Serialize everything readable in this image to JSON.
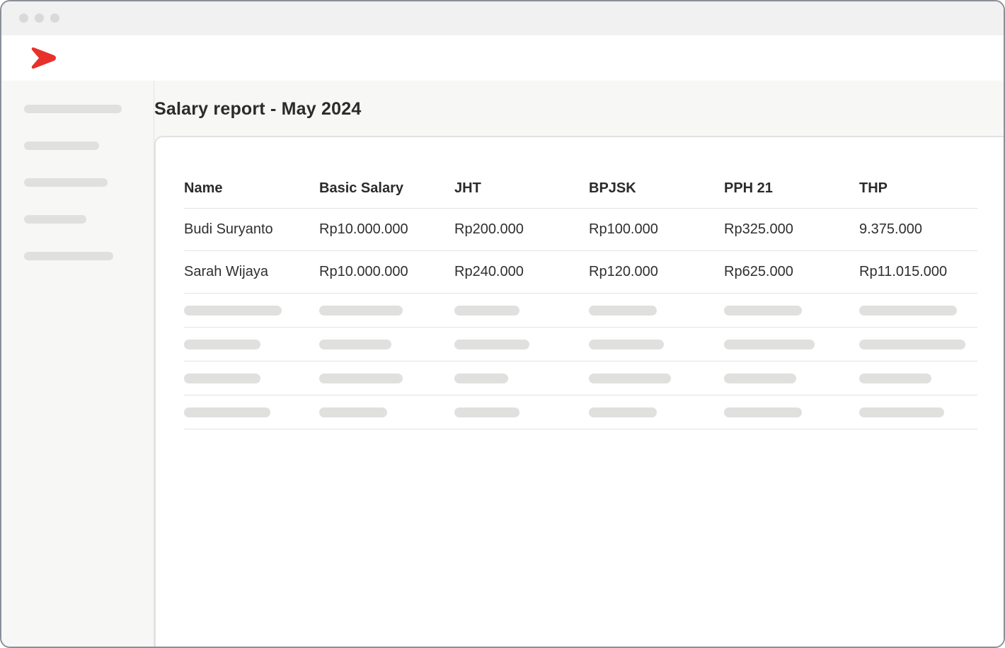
{
  "window": {
    "colors": {
      "traffic_light": "#d9d9d9",
      "border": "#8b8f9a",
      "brand": "#e8312b"
    }
  },
  "app": {
    "logo_icon": "chevron-arrow-logo"
  },
  "page": {
    "title": "Salary report - May 2024"
  },
  "table": {
    "columns": [
      "Name",
      "Basic Salary",
      "JHT",
      "BPJSK",
      "PPH 21",
      "THP"
    ],
    "rows": [
      [
        "Budi Suryanto",
        "Rp10.000.000",
        "Rp200.000",
        "Rp100.000",
        "Rp325.000",
        "9.375.000"
      ],
      [
        "Sarah Wijaya",
        "Rp10.000.000",
        "Rp240.000",
        "Rp120.000",
        "Rp625.000",
        "Rp11.015.000"
      ]
    ]
  }
}
